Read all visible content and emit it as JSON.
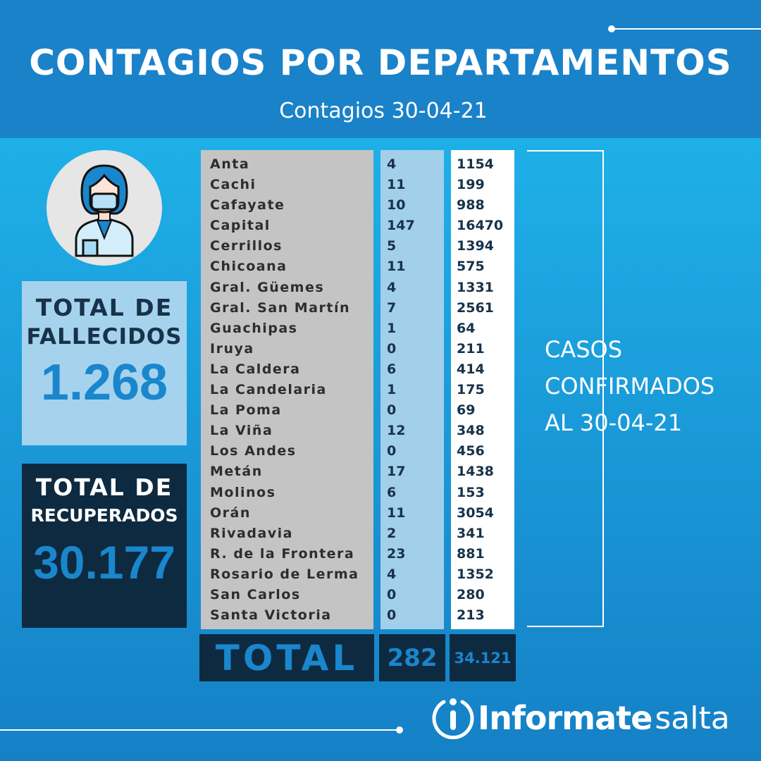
{
  "header": {
    "title": "CONTAGIOS POR DEPARTAMENTOS",
    "subtitle": "Contagios 30-04-21"
  },
  "colors": {
    "header": "#1a82c9",
    "dark_box": "#0e2a40",
    "accent": "#1a86cc",
    "names_bg": "#c4c4c4",
    "deaths_bg": "#a2cfe9"
  },
  "fallecidos": {
    "label1": "TOTAL DE",
    "label2": "FALLECIDOS",
    "value": "1.268"
  },
  "recuperados": {
    "label1": "TOTAL DE",
    "label2": "RECUPERADOS",
    "value": "30.177"
  },
  "avatar_icon": "masked-health-worker-icon",
  "table": {
    "rows": [
      {
        "name": "Anta",
        "new": "4",
        "total": "1154"
      },
      {
        "name": "Cachi",
        "new": "11",
        "total": "199"
      },
      {
        "name": "Cafayate",
        "new": "10",
        "total": "988"
      },
      {
        "name": "Capital",
        "new": "147",
        "total": "16470"
      },
      {
        "name": "Cerrillos",
        "new": "5",
        "total": "1394"
      },
      {
        "name": "Chicoana",
        "new": "11",
        "total": "575"
      },
      {
        "name": "Gral. Güemes",
        "new": "4",
        "total": "1331"
      },
      {
        "name": "Gral. San Martín",
        "new": "7",
        "total": "2561"
      },
      {
        "name": "Guachipas",
        "new": "1",
        "total": "64"
      },
      {
        "name": "Iruya",
        "new": "0",
        "total": "211"
      },
      {
        "name": "La Caldera",
        "new": "6",
        "total": "414"
      },
      {
        "name": "La Candelaria",
        "new": "1",
        "total": "175"
      },
      {
        "name": "La Poma",
        "new": "0",
        "total": "69"
      },
      {
        "name": "La Viña",
        "new": "12",
        "total": "348"
      },
      {
        "name": "Los Andes",
        "new": "0",
        "total": "456"
      },
      {
        "name": "Metán",
        "new": "17",
        "total": "1438"
      },
      {
        "name": "Molinos",
        "new": "6",
        "total": "153"
      },
      {
        "name": "Orán",
        "new": "11",
        "total": "3054"
      },
      {
        "name": "Rivadavia",
        "new": "2",
        "total": "341"
      },
      {
        "name": "R. de la Frontera",
        "new": "23",
        "total": "881"
      },
      {
        "name": "Rosario de Lerma",
        "new": "4",
        "total": "1352"
      },
      {
        "name": "San Carlos",
        "new": "0",
        "total": "280"
      },
      {
        "name": "Santa Victoria",
        "new": "0",
        "total": "213"
      }
    ],
    "total_label": "TOTAL",
    "total_new": "282",
    "total_cases": "34.121"
  },
  "casos": {
    "line1": "CASOS",
    "line2": "CONFIRMADOS",
    "line3": "AL 30-04-21"
  },
  "logo": {
    "text_bold": "Informate",
    "text_light": "salta"
  }
}
